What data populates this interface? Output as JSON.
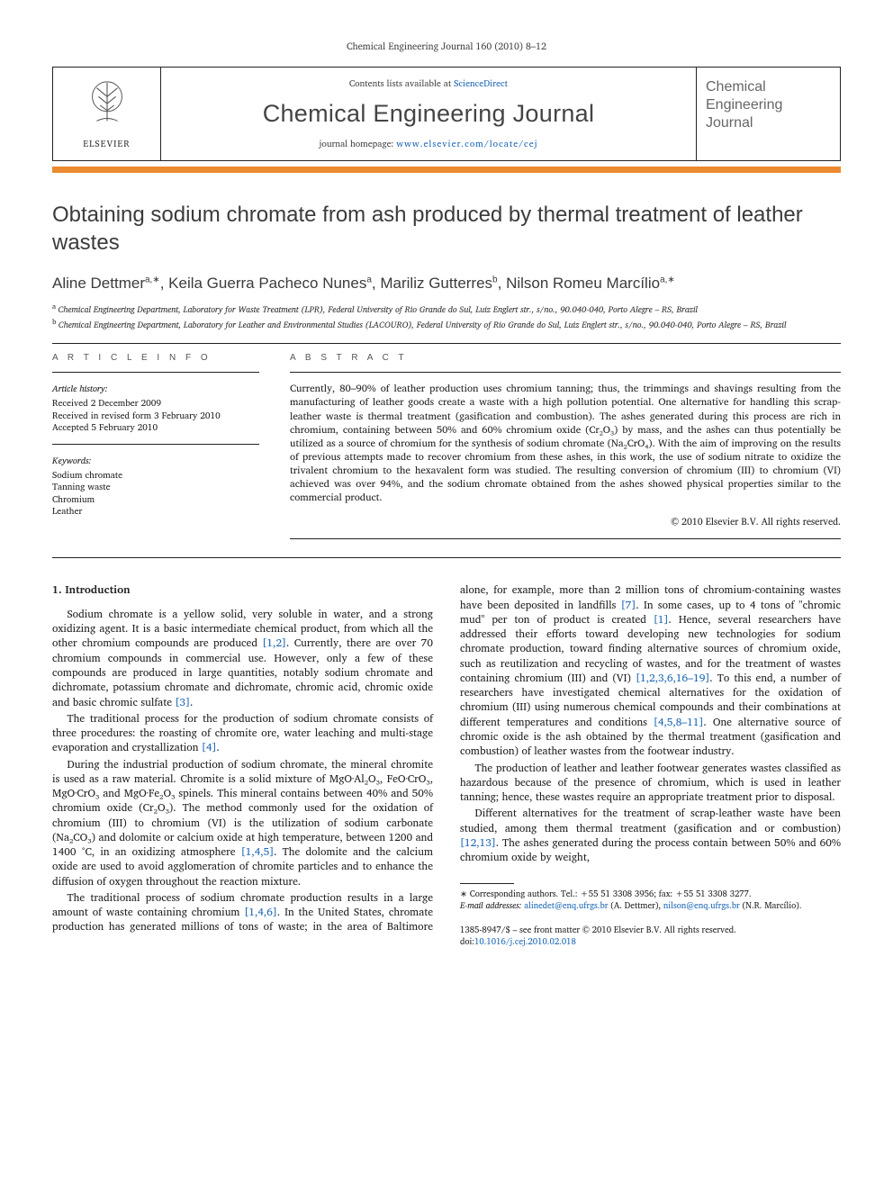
{
  "running_head": "Chemical Engineering Journal 160 (2010) 8–12",
  "masthead": {
    "contents_line_pre": "Contents lists available at ",
    "contents_link": "ScienceDirect",
    "journal_name": "Chemical Engineering Journal",
    "homepage_label": "journal homepage: ",
    "homepage_url": "www.elsevier.com/locate/cej",
    "publisher": "ELSEVIER",
    "right_box": "Chemical Engineering Journal",
    "accent_color": "#ec8a2f"
  },
  "title": "Obtaining sodium chromate from ash produced by thermal treatment of leather wastes",
  "authors": [
    {
      "name": "Aline Dettmer",
      "sup": "a,∗"
    },
    {
      "name": "Keila Guerra Pacheco Nunes",
      "sup": "a"
    },
    {
      "name": "Mariliz Gutterres",
      "sup": "b"
    },
    {
      "name": "Nilson Romeu Marcílio",
      "sup": "a,∗"
    }
  ],
  "affiliations": [
    {
      "sup": "a",
      "text": "Chemical Engineering Department, Laboratory for Waste Treatment (LPR), Federal University of Rio Grande do Sul, Luiz Englert str., s/no., 90.040-040, Porto Alegre – RS, Brazil"
    },
    {
      "sup": "b",
      "text": "Chemical Engineering Department, Laboratory for Leather and Environmental Studies (LACOURO), Federal University of Rio Grande do Sul, Luiz Englert str., s/no., 90.040-040, Porto Alegre – RS, Brazil"
    }
  ],
  "info": {
    "head": "A R T I C L E   I N F O",
    "history_label": "Article history:",
    "history": [
      "Received 2 December 2009",
      "Received in revised form 3 February 2010",
      "Accepted 5 February 2010"
    ],
    "keywords_label": "Keywords:",
    "keywords": [
      "Sodium chromate",
      "Tanning waste",
      "Chromium",
      "Leather"
    ]
  },
  "abstract": {
    "head": "A B S T R A C T",
    "text": "Currently, 80–90% of leather production uses chromium tanning; thus, the trimmings and shavings resulting from the manufacturing of leather goods create a waste with a high pollution potential. One alternative for handling this scrap-leather waste is thermal treatment (gasification and combustion). The ashes generated during this process are rich in chromium, containing between 50% and 60% chromium oxide (Cr₂O₃) by mass, and the ashes can thus potentially be utilized as a source of chromium for the synthesis of sodium chromate (Na₂CrO₄). With the aim of improving on the results of previous attempts made to recover chromium from these ashes, in this work, the use of sodium nitrate to oxidize the trivalent chromium to the hexavalent form was studied. The resulting conversion of chromium (III) to chromium (VI) achieved was over 94%, and the sodium chromate obtained from the ashes showed physical properties similar to the commercial product.",
    "copyright": "© 2010 Elsevier B.V. All rights reserved."
  },
  "section1": {
    "heading": "1. Introduction",
    "p1a": "Sodium chromate is a yellow solid, very soluble in water, and a strong oxidizing agent. It is a basic intermediate chemical product, from which all the other chromium compounds are produced ",
    "p1_ref1": "[1,2]",
    "p1b": ". Currently, there are over 70 chromium compounds in commercial use. However, only a few of these compounds are produced in large quantities, notably sodium chromate and dichromate, potassium chromate and dichromate, chromic acid, chromic oxide and basic chromic sulfate ",
    "p1_ref2": "[3]",
    "p1c": ".",
    "p2a": "The traditional process for the production of sodium chromate consists of three procedures: the roasting of chromite ore, water leaching and multi-stage evaporation and crystallization ",
    "p2_ref1": "[4]",
    "p2b": ".",
    "p3a": "During the industrial production of sodium chromate, the mineral chromite is used as a raw material. Chromite is a solid mixture of MgO·Al₂O₃, FeO·CrO₃, MgO·CrO₃ and MgO·Fe₂O₃ spinels. This mineral contains between 40% and 50% chromium oxide (Cr₂O₃). The method commonly used for the oxidation of chromium (III) to chromium (VI) is the utilization of sodium carbonate (Na₂CO₃) and dolomite or calcium oxide at high temperature, between 1200 and 1400 °C, in an oxidizing atmosphere ",
    "p3_ref1": "[1,4,5]",
    "p3b": ". The dolomite and the calcium oxide are used to avoid agglomeration of chromite particles and to enhance the diffusion of oxygen throughout the reaction mixture.",
    "p4a": "The traditional process of sodium chromate production results in a large amount of waste containing chromium ",
    "p4_ref1": "[1,4,6]",
    "p4b": ". In the United States, chromate production has generated millions of tons of waste; in the area of Baltimore alone, for example, more than 2 million tons of chromium-containing wastes have been deposited in landfills ",
    "p4_ref2": "[7]",
    "p4c": ". In some cases, up to 4 tons of \"chromic mud\" per ton of product is created ",
    "p4_ref3": "[1]",
    "p4d": ". Hence, several researchers have addressed their efforts toward developing new technologies for sodium chromate production, toward finding alternative sources of chromium oxide, such as reutilization and recycling of wastes, and for the treatment of wastes containing chromium (III) and (VI) ",
    "p4_ref4": "[1,2,3,6,16–19]",
    "p4e": ". To this end, a number of researchers have investigated chemical alternatives for the oxidation of chromium (III) using numerous chemical compounds and their combinations at different temperatures and conditions ",
    "p4_ref5": "[4,5,8–11]",
    "p4f": ". One alternative source of chromic oxide is the ash obtained by the thermal treatment (gasification and combustion) of leather wastes from the footwear industry.",
    "p5": "The production of leather and leather footwear generates wastes classified as hazardous because of the presence of chromium, which is used in leather tanning; hence, these wastes require an appropriate treatment prior to disposal.",
    "p6a": "Different alternatives for the treatment of scrap-leather waste have been studied, among them thermal treatment (gasification and or combustion) ",
    "p6_ref1": "[12,13]",
    "p6b": ". The ashes generated during the process contain between 50% and 60% chromium oxide by weight,"
  },
  "footnote": {
    "corr": "∗ Corresponding authors. Tel.: +55 51 3308 3956; fax: +55 51 3308 3277.",
    "email_label": "E-mail addresses: ",
    "email1": "alinedet@enq.ufrgs.br",
    "email1_paren": " (A. Dettmer), ",
    "email2": "nilson@enq.ufrgs.br",
    "email2_paren": " (N.R. Marcílio)."
  },
  "footer_meta": {
    "line1": "1385-8947/$ – see front matter © 2010 Elsevier B.V. All rights reserved.",
    "doi_label": "doi:",
    "doi": "10.1016/j.cej.2010.02.018"
  }
}
